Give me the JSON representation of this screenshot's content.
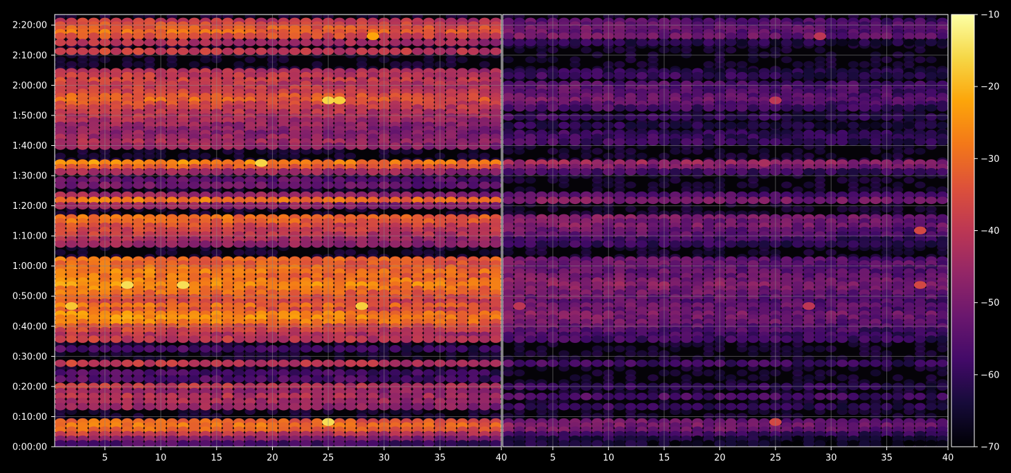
{
  "chart_data": {
    "type": "heatmap",
    "panels": [
      {
        "name": "left",
        "x_ticks": [
          "5",
          "10",
          "15",
          "20",
          "25",
          "30",
          "35",
          "40"
        ],
        "x_tick_values": [
          5,
          10,
          15,
          20,
          25,
          30,
          35,
          40
        ],
        "xlim": [
          1,
          40
        ],
        "overall_level": "high",
        "bands": [
          {
            "t_min": 141.2,
            "value": -38
          },
          {
            "t_min": 140.0,
            "value": -34
          },
          {
            "t_min": 138.8,
            "value": -31
          },
          {
            "t_min": 137.5,
            "value": -29
          },
          {
            "t_min": 136.3,
            "value": -33
          },
          {
            "t_min": 134.2,
            "value": -40
          },
          {
            "t_min": 131.3,
            "value": -37
          },
          {
            "t_min": 124.5,
            "value": -40
          },
          {
            "t_min": 123.2,
            "value": -38
          },
          {
            "t_min": 121.5,
            "value": -36
          },
          {
            "t_min": 120.3,
            "value": -38
          },
          {
            "t_min": 119.0,
            "value": -37
          },
          {
            "t_min": 117.7,
            "value": -36
          },
          {
            "t_min": 116.3,
            "value": -32
          },
          {
            "t_min": 115.0,
            "value": -30
          },
          {
            "t_min": 113.7,
            "value": -34
          },
          {
            "t_min": 112.5,
            "value": -36
          },
          {
            "t_min": 111.0,
            "value": -38
          },
          {
            "t_min": 109.5,
            "value": -40
          },
          {
            "t_min": 108.2,
            "value": -42
          },
          {
            "t_min": 106.7,
            "value": -44
          },
          {
            "t_min": 105.3,
            "value": -45
          },
          {
            "t_min": 104.0,
            "value": -46
          },
          {
            "t_min": 102.7,
            "value": -44
          },
          {
            "t_min": 101.2,
            "value": -42
          },
          {
            "t_min": 99.8,
            "value": -44
          },
          {
            "t_min": 94.2,
            "value": -25
          },
          {
            "t_min": 92.7,
            "value": -31
          },
          {
            "t_min": 91.3,
            "value": -42
          },
          {
            "t_min": 88.5,
            "value": -52
          },
          {
            "t_min": 86.8,
            "value": -50
          },
          {
            "t_min": 83.5,
            "value": -44
          },
          {
            "t_min": 81.8,
            "value": -27
          },
          {
            "t_min": 80.0,
            "value": -45
          },
          {
            "t_min": 76.0,
            "value": -28
          },
          {
            "t_min": 74.7,
            "value": -30
          },
          {
            "t_min": 73.2,
            "value": -34
          },
          {
            "t_min": 71.8,
            "value": -36
          },
          {
            "t_min": 70.3,
            "value": -38
          },
          {
            "t_min": 68.7,
            "value": -42
          },
          {
            "t_min": 67.3,
            "value": -44
          },
          {
            "t_min": 62.0,
            "value": -28
          },
          {
            "t_min": 60.7,
            "value": -30
          },
          {
            "t_min": 59.3,
            "value": -28
          },
          {
            "t_min": 58.0,
            "value": -26
          },
          {
            "t_min": 56.5,
            "value": -28
          },
          {
            "t_min": 55.0,
            "value": -25
          },
          {
            "t_min": 53.7,
            "value": -23
          },
          {
            "t_min": 52.3,
            "value": -26
          },
          {
            "t_min": 51.0,
            "value": -29
          },
          {
            "t_min": 49.5,
            "value": -31
          },
          {
            "t_min": 48.0,
            "value": -34
          },
          {
            "t_min": 46.7,
            "value": -28
          },
          {
            "t_min": 45.3,
            "value": -32
          },
          {
            "t_min": 44.0,
            "value": -25
          },
          {
            "t_min": 42.7,
            "value": -24
          },
          {
            "t_min": 41.3,
            "value": -26
          },
          {
            "t_min": 39.8,
            "value": -32
          },
          {
            "t_min": 38.5,
            "value": -36
          },
          {
            "t_min": 37.0,
            "value": -40
          },
          {
            "t_min": 35.7,
            "value": -38
          },
          {
            "t_min": 32.5,
            "value": -56
          },
          {
            "t_min": 27.7,
            "value": -38
          },
          {
            "t_min": 24.5,
            "value": -55
          },
          {
            "t_min": 22.5,
            "value": -54
          },
          {
            "t_min": 20.0,
            "value": -38
          },
          {
            "t_min": 18.3,
            "value": -44
          },
          {
            "t_min": 16.7,
            "value": -40
          },
          {
            "t_min": 15.0,
            "value": -42
          },
          {
            "t_min": 13.3,
            "value": -44
          },
          {
            "t_min": 8.2,
            "value": -30
          },
          {
            "t_min": 6.9,
            "value": -27
          },
          {
            "t_min": 5.5,
            "value": -30
          },
          {
            "t_min": 4.0,
            "value": -38
          },
          {
            "t_min": 2.5,
            "value": -46
          },
          {
            "t_min": 1.0,
            "value": -55
          }
        ],
        "hotspots": [
          {
            "x": 25,
            "t_min": 115.0,
            "value": -16
          },
          {
            "x": 26,
            "t_min": 115.0,
            "value": -17
          },
          {
            "x": 29,
            "t_min": 136.3,
            "value": -22
          },
          {
            "x": 19,
            "t_min": 94.2,
            "value": -16
          },
          {
            "x": 7,
            "t_min": 53.7,
            "value": -15
          },
          {
            "x": 12,
            "t_min": 53.7,
            "value": -15
          },
          {
            "x": 25,
            "t_min": 8.2,
            "value": -15
          },
          {
            "x": 2,
            "t_min": 46.7,
            "value": -18
          },
          {
            "x": 28,
            "t_min": 46.7,
            "value": -17
          }
        ]
      },
      {
        "name": "right",
        "x_ticks": [
          "5",
          "10",
          "15",
          "20",
          "25",
          "30",
          "35",
          "40"
        ],
        "x_tick_values": [
          5,
          10,
          15,
          20,
          25,
          30,
          35,
          40
        ],
        "xlim": [
          1,
          40
        ],
        "overall_level": "low",
        "bands": [
          {
            "t_min": 141.2,
            "value": -54
          },
          {
            "t_min": 140.0,
            "value": -52
          },
          {
            "t_min": 138.8,
            "value": -51
          },
          {
            "t_min": 137.5,
            "value": -52
          },
          {
            "t_min": 136.3,
            "value": -50
          },
          {
            "t_min": 134.2,
            "value": -60
          },
          {
            "t_min": 124.5,
            "value": -60
          },
          {
            "t_min": 123.2,
            "value": -58
          },
          {
            "t_min": 120.3,
            "value": -54
          },
          {
            "t_min": 119.0,
            "value": -53
          },
          {
            "t_min": 117.7,
            "value": -54
          },
          {
            "t_min": 116.3,
            "value": -52
          },
          {
            "t_min": 115.0,
            "value": -50
          },
          {
            "t_min": 113.7,
            "value": -53
          },
          {
            "t_min": 112.5,
            "value": -56
          },
          {
            "t_min": 109.5,
            "value": -58
          },
          {
            "t_min": 106.7,
            "value": -60
          },
          {
            "t_min": 104.0,
            "value": -58
          },
          {
            "t_min": 102.7,
            "value": -57
          },
          {
            "t_min": 101.2,
            "value": -57
          },
          {
            "t_min": 94.2,
            "value": -44
          },
          {
            "t_min": 92.7,
            "value": -48
          },
          {
            "t_min": 91.3,
            "value": -56
          },
          {
            "t_min": 83.5,
            "value": -54
          },
          {
            "t_min": 81.8,
            "value": -48
          },
          {
            "t_min": 76.0,
            "value": -48
          },
          {
            "t_min": 74.7,
            "value": -49
          },
          {
            "t_min": 73.2,
            "value": -48
          },
          {
            "t_min": 71.8,
            "value": -51
          },
          {
            "t_min": 70.3,
            "value": -52
          },
          {
            "t_min": 68.7,
            "value": -56
          },
          {
            "t_min": 67.3,
            "value": -58
          },
          {
            "t_min": 62.0,
            "value": -52
          },
          {
            "t_min": 60.7,
            "value": -50
          },
          {
            "t_min": 59.3,
            "value": -52
          },
          {
            "t_min": 58.0,
            "value": -51
          },
          {
            "t_min": 56.5,
            "value": -50
          },
          {
            "t_min": 55.0,
            "value": -48
          },
          {
            "t_min": 53.7,
            "value": -46
          },
          {
            "t_min": 52.3,
            "value": -48
          },
          {
            "t_min": 51.0,
            "value": -50
          },
          {
            "t_min": 49.5,
            "value": -51
          },
          {
            "t_min": 48.0,
            "value": -53
          },
          {
            "t_min": 46.7,
            "value": -50
          },
          {
            "t_min": 45.3,
            "value": -52
          },
          {
            "t_min": 44.0,
            "value": -48
          },
          {
            "t_min": 42.7,
            "value": -49
          },
          {
            "t_min": 41.3,
            "value": -50
          },
          {
            "t_min": 39.8,
            "value": -52
          },
          {
            "t_min": 38.5,
            "value": -54
          },
          {
            "t_min": 37.0,
            "value": -55
          },
          {
            "t_min": 35.7,
            "value": -56
          },
          {
            "t_min": 27.7,
            "value": -56
          },
          {
            "t_min": 20.0,
            "value": -58
          },
          {
            "t_min": 16.7,
            "value": -55
          },
          {
            "t_min": 13.3,
            "value": -58
          },
          {
            "t_min": 8.2,
            "value": -50
          },
          {
            "t_min": 6.9,
            "value": -48
          },
          {
            "t_min": 5.5,
            "value": -50
          },
          {
            "t_min": 4.0,
            "value": -56
          },
          {
            "t_min": 2.5,
            "value": -62
          },
          {
            "t_min": 1.0,
            "value": -64
          }
        ],
        "hotspots": [
          {
            "x": 25,
            "t_min": 115.0,
            "value": -40
          },
          {
            "x": 29,
            "t_min": 136.3,
            "value": -40
          },
          {
            "x": 24,
            "t_min": 94.2,
            "value": -43
          },
          {
            "x": 25,
            "t_min": 8.2,
            "value": -36
          },
          {
            "x": 2,
            "t_min": 46.7,
            "value": -40
          },
          {
            "x": 28,
            "t_min": 46.7,
            "value": -40
          },
          {
            "x": 38,
            "t_min": 53.7,
            "value": -36
          },
          {
            "x": 38,
            "t_min": 71.8,
            "value": -36
          }
        ]
      }
    ],
    "y_ticks": [
      "0:00:00",
      "0:10:00",
      "0:20:00",
      "0:30:00",
      "0:40:00",
      "0:50:00",
      "1:00:00",
      "1:10:00",
      "1:20:00",
      "1:30:00",
      "1:40:00",
      "1:50:00",
      "2:00:00",
      "2:10:00",
      "2:20:00"
    ],
    "y_tick_values_min": [
      0,
      10,
      20,
      30,
      40,
      50,
      60,
      70,
      80,
      90,
      100,
      110,
      120,
      130,
      140
    ],
    "ylim_min": [
      0,
      143.5
    ],
    "colorbar": {
      "colormap": "inferno",
      "range": [
        -70,
        -10
      ],
      "ticks": [
        "-10",
        "-20",
        "-30",
        "-40",
        "-50",
        "-60",
        "-70"
      ],
      "tick_values": [
        -10,
        -20,
        -30,
        -40,
        -50,
        -60,
        -70
      ]
    },
    "grid": true,
    "background_color": "#000000",
    "grid_color": "#888888"
  }
}
